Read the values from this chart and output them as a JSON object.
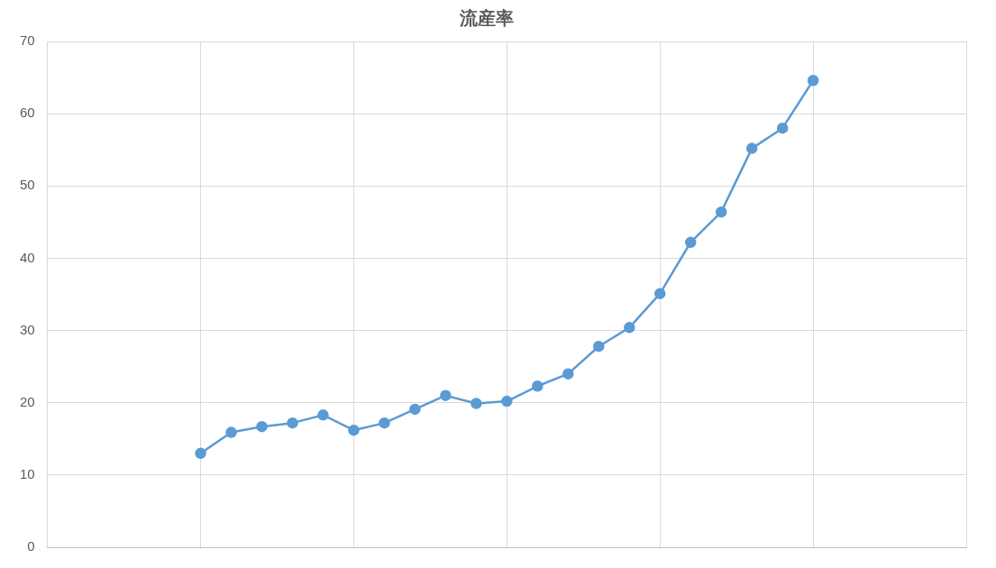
{
  "chart_data": {
    "type": "line",
    "title": "流産率",
    "categories": [
      null,
      null,
      null,
      null,
      null,
      null,
      null,
      null,
      null,
      null,
      null,
      null,
      null,
      null,
      null,
      null,
      null,
      null,
      null,
      null,
      null,
      null,
      null,
      null,
      null,
      null,
      null,
      null,
      null,
      null,
      null
    ],
    "series": [
      {
        "color": "#5b9bd5",
        "values": [
          null,
          null,
          null,
          null,
          null,
          13.0,
          15.9,
          16.7,
          17.2,
          18.3,
          16.2,
          17.2,
          19.1,
          21.0,
          19.9,
          20.2,
          22.3,
          24.0,
          27.8,
          30.4,
          35.1,
          42.2,
          46.4,
          55.2,
          58.0,
          64.6,
          null,
          null,
          null,
          null,
          null
        ]
      }
    ],
    "ylim": [
      0,
      70
    ],
    "yticks": [
      0,
      10,
      20,
      30,
      40,
      50,
      60,
      70
    ],
    "tick_labels": "y",
    "grid": true,
    "legend": false,
    "marker": "circle",
    "line_style": "solid"
  }
}
